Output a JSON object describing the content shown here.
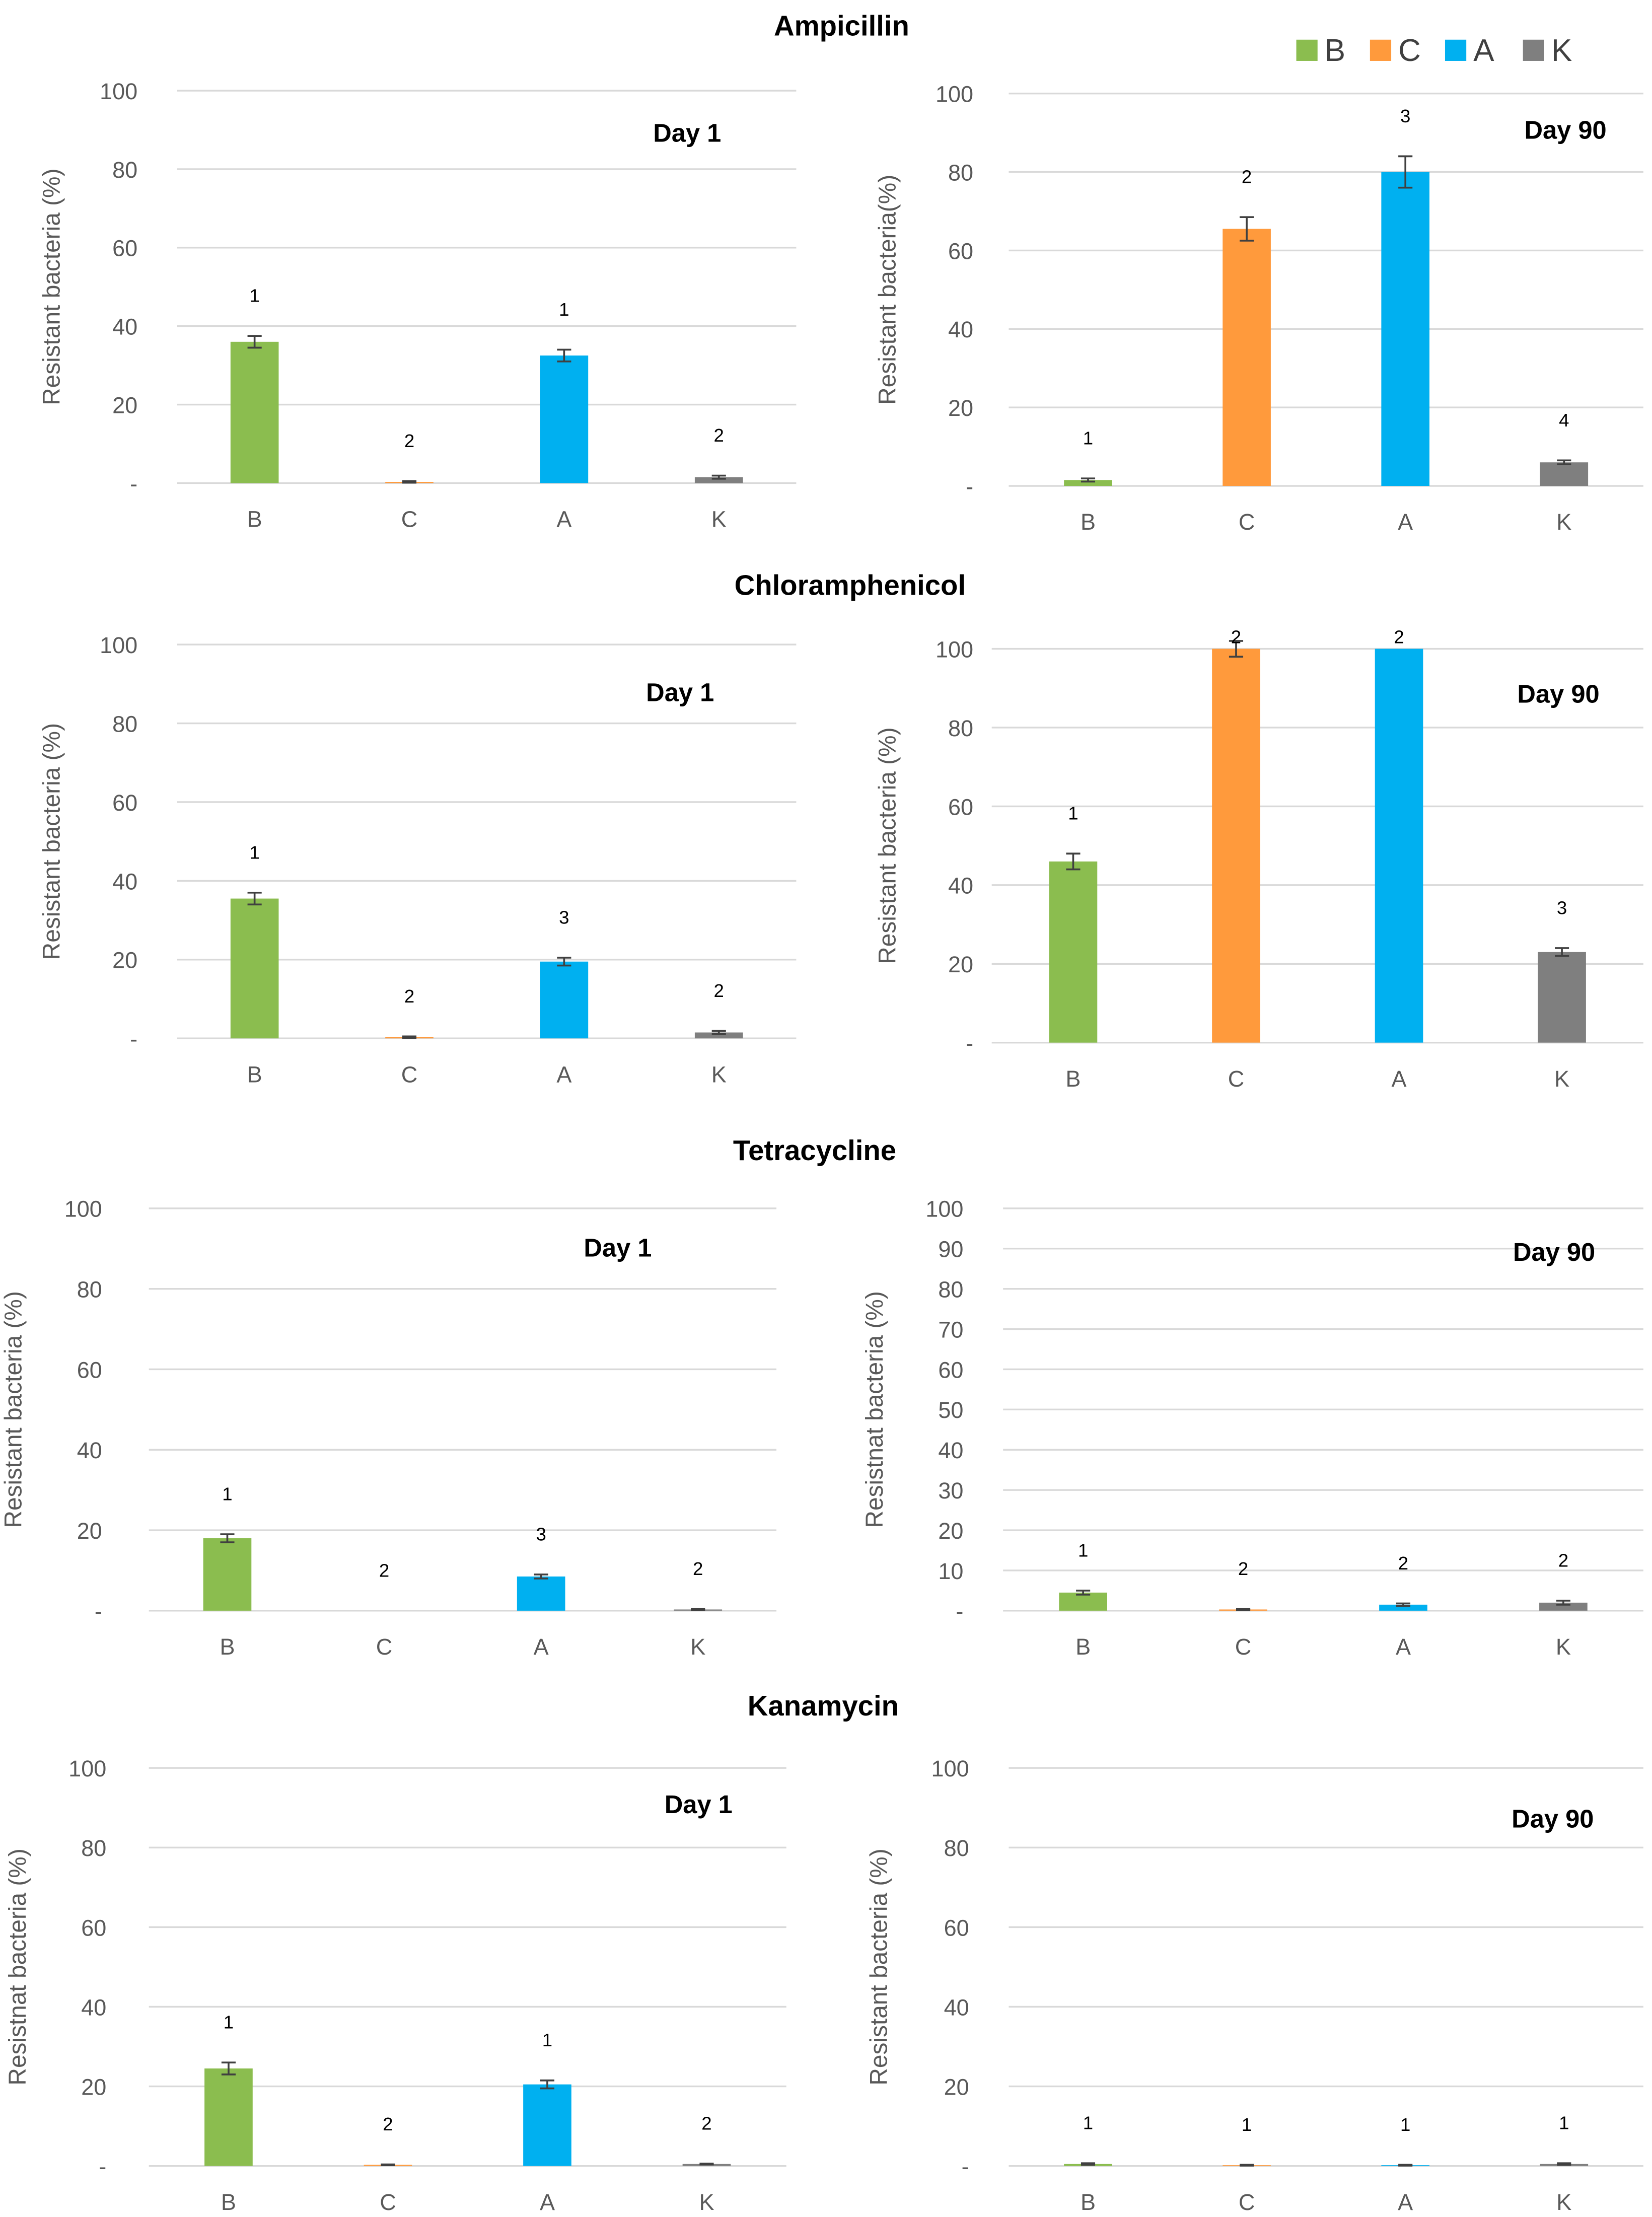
{
  "legend": [
    {
      "label": "B",
      "color": "#8BBD4F"
    },
    {
      "label": "C",
      "color": "#FF9A3C"
    },
    {
      "label": "A",
      "color": "#00B0F0"
    },
    {
      "label": "K",
      "color": "#7F7F7F"
    }
  ],
  "chart_data": [
    {
      "type": "bar",
      "group": "Ampicillin",
      "title": "Day 1",
      "ylabel": "Resistant bacteria (%)",
      "ylim": [
        0,
        100
      ],
      "yticks": [
        0,
        20,
        40,
        60,
        80,
        100
      ],
      "zero_label": "-",
      "grid": true,
      "categories": [
        "B",
        "C",
        "A",
        "K"
      ],
      "values": [
        36,
        0.3,
        32.5,
        1.5
      ],
      "errors": [
        1.5,
        0.2,
        1.5,
        0.4
      ],
      "significance": [
        "1",
        "2",
        "1",
        "2"
      ]
    },
    {
      "type": "bar",
      "group": "Ampicillin",
      "title": "Day 90",
      "ylabel": "Resistant bacteria(%)",
      "ylim": [
        0,
        100
      ],
      "yticks": [
        0,
        20,
        40,
        60,
        80,
        100
      ],
      "zero_label": "-",
      "grid": true,
      "categories": [
        "B",
        "C",
        "A",
        "K"
      ],
      "values": [
        1.5,
        65.5,
        80,
        6
      ],
      "errors": [
        0.4,
        3,
        4,
        0.5
      ],
      "significance": [
        "1",
        "2",
        "3",
        "4"
      ]
    },
    {
      "type": "bar",
      "group": "Chloramphenicol",
      "title": "Day 1",
      "ylabel": "Resistant bacteria (%)",
      "ylim": [
        0,
        100
      ],
      "yticks": [
        0,
        20,
        40,
        60,
        80,
        100
      ],
      "zero_label": "-",
      "grid": true,
      "categories": [
        "B",
        "C",
        "A",
        "K"
      ],
      "values": [
        35.5,
        0.3,
        19.5,
        1.5
      ],
      "errors": [
        1.5,
        0.2,
        1,
        0.4
      ],
      "significance": [
        "1",
        "2",
        "3",
        "2"
      ]
    },
    {
      "type": "bar",
      "group": "Chloramphenicol",
      "title": "Day 90",
      "ylabel": "Resistant bacteria (%)",
      "ylim": [
        0,
        100
      ],
      "yticks": [
        0,
        20,
        40,
        60,
        80,
        100
      ],
      "zero_label": "-",
      "grid": true,
      "categories": [
        "B",
        "C",
        "A",
        "K"
      ],
      "values": [
        46,
        100,
        100,
        23
      ],
      "errors": [
        2,
        2,
        0,
        1
      ],
      "significance": [
        "1",
        "2",
        "2",
        "3"
      ]
    },
    {
      "type": "bar",
      "group": "Tetracycline",
      "title": "Day 1",
      "ylabel": "Resistant bacteria (%)",
      "ylim": [
        0,
        100
      ],
      "yticks": [
        0,
        20,
        40,
        60,
        80,
        100
      ],
      "zero_label": "-",
      "grid": true,
      "categories": [
        "B",
        "C",
        "A",
        "K"
      ],
      "values": [
        18,
        0,
        8.5,
        0.3
      ],
      "errors": [
        1,
        0,
        0.5,
        0.1
      ],
      "significance": [
        "1",
        "2",
        "3",
        "2"
      ]
    },
    {
      "type": "bar",
      "group": "Tetracycline",
      "title": "Day 90",
      "ylabel": "Resistnat bacteria (%)",
      "ylim": [
        0,
        100
      ],
      "yticks": [
        0,
        10,
        20,
        30,
        40,
        50,
        60,
        70,
        80,
        90,
        100
      ],
      "zero_label": "-",
      "grid": true,
      "categories": [
        "B",
        "C",
        "A",
        "K"
      ],
      "values": [
        4.5,
        0.3,
        1.5,
        2
      ],
      "errors": [
        0.5,
        0.1,
        0.3,
        0.5
      ],
      "significance": [
        "1",
        "2",
        "2",
        "2"
      ]
    },
    {
      "type": "bar",
      "group": "Kanamycin",
      "title": "Day 1",
      "ylabel": "Resistnat bacteria (%)",
      "ylim": [
        0,
        100
      ],
      "yticks": [
        0,
        20,
        40,
        60,
        80,
        100
      ],
      "zero_label": "-",
      "grid": true,
      "categories": [
        "B",
        "C",
        "A",
        "K"
      ],
      "values": [
        24.5,
        0.3,
        20.5,
        0.5
      ],
      "errors": [
        1.5,
        0.1,
        1,
        0.1
      ],
      "significance": [
        "1",
        "2",
        "1",
        "2"
      ]
    },
    {
      "type": "bar",
      "group": "Kanamycin",
      "title": "Day 90",
      "ylabel": "Resistant bacteria (%)",
      "ylim": [
        0,
        100
      ],
      "yticks": [
        0,
        20,
        40,
        60,
        80,
        100
      ],
      "zero_label": "-",
      "grid": true,
      "categories": [
        "B",
        "C",
        "A",
        "K"
      ],
      "values": [
        0.5,
        0.2,
        0.2,
        0.5
      ],
      "errors": [
        0.2,
        0.1,
        0.1,
        0.2
      ],
      "significance": [
        "1",
        "1",
        "1",
        "1"
      ]
    }
  ],
  "groups": [
    "Ampicillin",
    "Chloramphenicol",
    "Tetracycline",
    "Kanamycin"
  ]
}
